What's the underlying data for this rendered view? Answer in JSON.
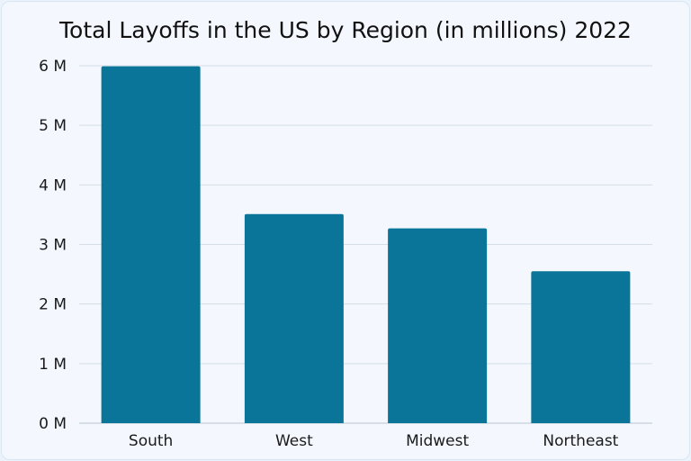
{
  "chart_data": {
    "type": "bar",
    "title": "Total Layoffs in the US by Region (in millions) 2022",
    "xlabel": "",
    "ylabel": "",
    "categories": [
      "South",
      "West",
      "Midwest",
      "Northeast"
    ],
    "values": [
      5.99,
      3.51,
      3.27,
      2.55
    ],
    "ylim": [
      0,
      6
    ],
    "yticks": [
      0,
      1,
      2,
      3,
      4,
      5,
      6
    ],
    "ytick_labels": [
      "0 M",
      "1 M",
      "2 M",
      "3 M",
      "4 M",
      "5 M",
      "6 M"
    ],
    "grid": true,
    "legend": "none",
    "colors": {
      "bar": "#0b7599",
      "grid": "#d5dde6",
      "background": "#f4f8fe",
      "text": "#1a1a1a"
    }
  }
}
